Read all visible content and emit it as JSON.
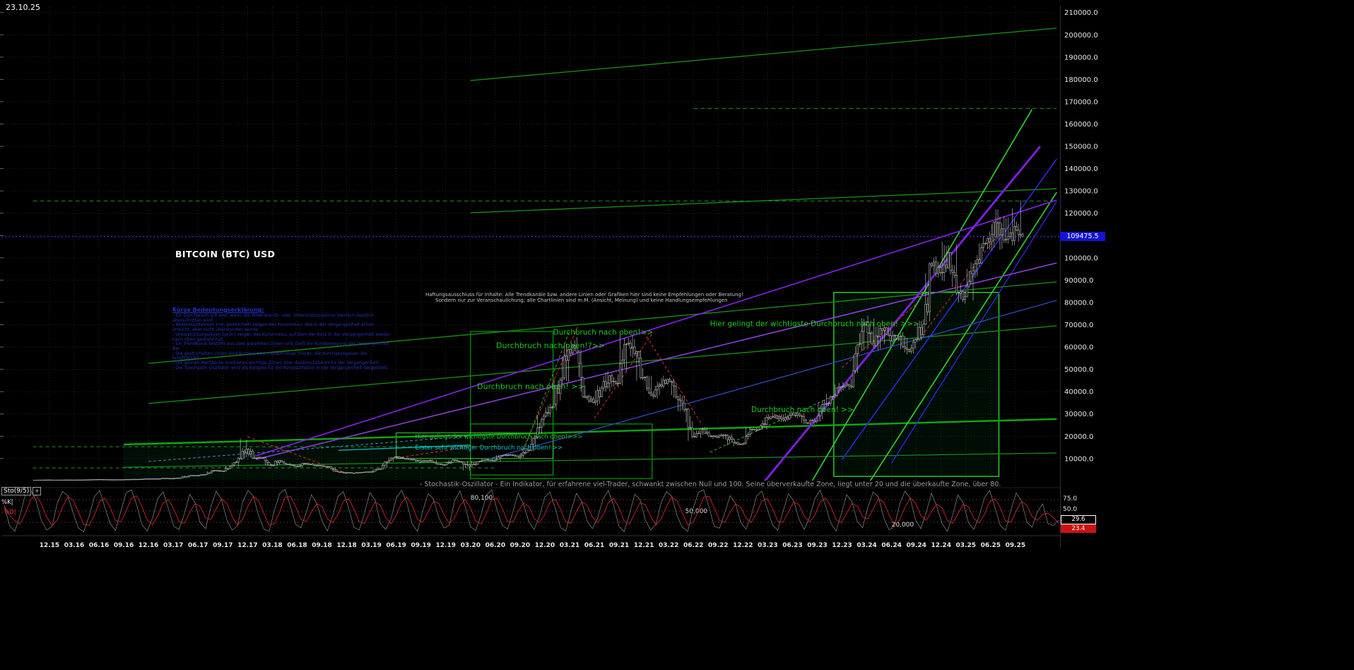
{
  "meta": {
    "date_label": "23.10.25",
    "current_price_label": "109475.5",
    "settings_icon_glyph": "+",
    "colors": {
      "background": "#000000",
      "price_badge": "#1313d6",
      "trend_green": "#168a16",
      "bright_green": "#2fd42f",
      "violet": "#7a1fd8",
      "blue": "#2929d6",
      "red_dashed": "#d03030",
      "stoch_d": "#d42222",
      "stoch_k": "#8a8a8a"
    }
  },
  "chart_data": {
    "type": "candlestick",
    "title": "BITCOIN (BTC) USD",
    "x_labels": [
      "12.15",
      "03.16",
      "06.16",
      "09.16",
      "12.16",
      "03.17",
      "06.17",
      "09.17",
      "12.17",
      "03.18",
      "06.18",
      "09.18",
      "12.18",
      "03.19",
      "06.19",
      "09.19",
      "12.19",
      "03.20",
      "06.20",
      "09.20",
      "12.20",
      "03.21",
      "06.21",
      "09.21",
      "12.21",
      "03.22",
      "06.22",
      "09.22",
      "12.22",
      "03.23",
      "06.23",
      "09.23",
      "12.23",
      "03.24",
      "06.24",
      "09.24",
      "12.24",
      "03.25",
      "06.25",
      "09.25"
    ],
    "y_axis": {
      "min": 0,
      "max": 215000,
      "ticks": [
        10000,
        20000,
        30000,
        40000,
        50000,
        60000,
        70000,
        80000,
        90000,
        100000,
        110000,
        120000,
        130000,
        140000,
        150000,
        160000,
        170000,
        180000,
        190000,
        200000,
        210000
      ]
    },
    "current_price": 109475.5,
    "price_series": {
      "start": "2015-10",
      "interval": "monthly",
      "closes": [
        314,
        377,
        430,
        368,
        437,
        416,
        448,
        531,
        673,
        624,
        575,
        610,
        700,
        745,
        963,
        970,
        1180,
        1080,
        1350,
        2300,
        2480,
        2875,
        4703,
        4338,
        6468,
        10233,
        14156,
        10285,
        10397,
        6973,
        9240,
        7494,
        6404,
        7780,
        7037,
        6625,
        6371,
        4017,
        3742,
        3457,
        3854,
        4105,
        5350,
        8574,
        10817,
        10085,
        9630,
        8308,
        9199,
        7569,
        7193,
        9350,
        8599,
        6438,
        8658,
        9461,
        9137,
        11323,
        11680,
        10784,
        13781,
        19695,
        28994,
        33114,
        45137,
        58918,
        57750,
        37332,
        35040,
        41626,
        47166,
        43790,
        61318,
        57005,
        46306,
        38483,
        43193,
        45538,
        37714,
        31792,
        19985,
        23336,
        20049,
        19431,
        20495,
        17168,
        16547,
        23139,
        23147,
        28478,
        29268,
        27219,
        30477,
        29230,
        25931,
        26967,
        34667,
        37718,
        42265,
        42580,
        61198,
        71333,
        60636,
        67491,
        62678,
        64619,
        58969,
        63329,
        70215,
        96449,
        93429,
        102405,
        84349,
        82548,
        94207,
        104598,
        107135,
        115758,
        108236,
        114056,
        109475.5
      ],
      "high_overrides": {
        "26": 19800,
        "65": 61800,
        "66": 64800,
        "72": 67000,
        "73": 69000,
        "101": 73700,
        "111": 109356,
        "117": 123218,
        "119": 124500,
        "120": 126199
      },
      "low_overrides": {
        "29": 6425,
        "38": 3122,
        "53": 3850,
        "80": 17593,
        "85": 15476,
        "114": 74420
      }
    },
    "trend_lines": [
      {
        "m1": 53,
        "p1": 179500,
        "m2": 124,
        "p2": 203000,
        "c": "#168a16",
        "w": 1.4
      },
      {
        "m1": 53,
        "p1": 120200,
        "m2": 124,
        "p2": 131000,
        "c": "#168a16",
        "w": 1.4
      },
      {
        "m1": 14,
        "p1": 52700,
        "m2": 124,
        "p2": 89200,
        "c": "#168a16",
        "w": 1.4
      },
      {
        "m1": 14,
        "p1": 34700,
        "m2": 124,
        "p2": 69500,
        "c": "#168a16",
        "w": 1.4
      },
      {
        "m1": 11,
        "p1": 16300,
        "m2": 124,
        "p2": 27700,
        "c": "#0fa80f",
        "w": 2.4
      },
      {
        "m1": 11,
        "p1": 6100,
        "m2": 124,
        "p2": 12500,
        "c": "#168a16",
        "w": 1.3
      },
      {
        "m1": 94,
        "p1": -2400,
        "m2": 121,
        "p2": 166500,
        "c": "#2fd42f",
        "w": 1.6
      },
      {
        "m1": 101,
        "p1": -2400,
        "m2": 124,
        "p2": 129400,
        "c": "#2fd42f",
        "w": 1.6
      },
      {
        "m1": 98,
        "p1": 9600,
        "m2": 124,
        "p2": 144300,
        "c": "#2929d6",
        "w": 1.6
      },
      {
        "m1": 104,
        "p1": 8000,
        "m2": 124,
        "p2": 125300,
        "c": "#2929d6",
        "w": 1.4
      },
      {
        "m1": 55,
        "p1": 9600,
        "m2": 124,
        "p2": 80900,
        "c": "#2f4fd0",
        "w": 1.2
      },
      {
        "m1": 88,
        "p1": -3000,
        "m2": 122,
        "p2": 150000,
        "c": "#7a1fd8",
        "w": 3
      },
      {
        "m1": 27,
        "p1": 11200,
        "m2": 124,
        "p2": 125900,
        "c": "#7a1fd8",
        "w": 1.8
      },
      {
        "m1": 27,
        "p1": 9600,
        "m2": 124,
        "p2": 97700,
        "c": "#8a3fd8",
        "w": 1.6
      },
      {
        "m1": 14,
        "p1": 8700,
        "m2": 53,
        "p2": 20100,
        "c": "#4f7fc9",
        "w": 1,
        "d": "4,3"
      },
      {
        "m1": 37,
        "p1": 13700,
        "m2": 53,
        "p2": 16000,
        "c": "#00c8c8",
        "w": 1.2
      },
      {
        "m1": 59,
        "p1": 11200,
        "m2": 66,
        "p2": 69200,
        "c": "#d03030",
        "w": 1,
        "d": "4,3"
      },
      {
        "m1": 68,
        "p1": 28000,
        "m2": 75,
        "p2": 66000,
        "c": "#d03030",
        "w": 1,
        "d": "4,3"
      },
      {
        "m1": 74,
        "p1": 66600,
        "m2": 81,
        "p2": 25400,
        "c": "#d03030",
        "w": 1,
        "d": "4,3"
      },
      {
        "m1": 82,
        "p1": 12800,
        "m2": 97,
        "p2": 38100,
        "c": "#2fae2f",
        "w": 1,
        "d": "4,3"
      },
      {
        "m1": 44,
        "p1": 10250,
        "m2": 53,
        "p2": 15300,
        "c": "#d03030",
        "w": 1,
        "d": "4,3"
      },
      {
        "m1": 98,
        "p1": 50800,
        "m2": 107,
        "p2": 79300,
        "c": "#d03030",
        "w": 1,
        "d": "4,3"
      },
      {
        "m1": 108,
        "p1": 66700,
        "m2": 117,
        "p2": 111000,
        "c": "#d03030",
        "w": 1,
        "d": "4,3"
      },
      {
        "m1": 59,
        "p1": 9600,
        "m2": 65,
        "p2": 67300,
        "c": "#2fae2f",
        "w": 1,
        "d": "4,3"
      },
      {
        "m1": 26,
        "p1": 19800,
        "m2": 38,
        "p2": 3400,
        "c": "#d03030",
        "w": 1,
        "d": "4,3"
      }
    ],
    "h_lines": [
      {
        "p": 125500,
        "m1": 0,
        "m2": 124,
        "c": "#1f8f1f",
        "w": 1,
        "d": "6,4"
      },
      {
        "p": 167000,
        "m1": 80,
        "m2": 124,
        "c": "#1f8f1f",
        "w": 1,
        "d": "6,4"
      },
      {
        "p": 15300,
        "m1": 0,
        "m2": 56,
        "c": "#2a8f2a",
        "w": 1,
        "d": "5,4"
      },
      {
        "p": 5800,
        "m1": 0,
        "m2": 56,
        "c": "#2a8f2a",
        "w": 1,
        "d": "5,4"
      }
    ],
    "boxes": [
      {
        "m1": 11,
        "m2": 53,
        "p1": 500,
        "p2": 18000,
        "f": "rgba(0,200,70,0.07)"
      },
      {
        "m1": 53,
        "m2": 63,
        "p1": 2600,
        "p2": 67000,
        "s": "#00a000",
        "w": 1.2
      },
      {
        "m1": 53,
        "m2": 75,
        "p1": 1000,
        "p2": 25500,
        "s": "#00a000",
        "w": 1.2
      },
      {
        "m1": 44,
        "m2": 63,
        "p1": 10000,
        "p2": 21500,
        "s": "#3ad23a",
        "w": 1
      },
      {
        "m1": 97,
        "m2": 117,
        "p1": 2000,
        "p2": 84500,
        "s": "#2ee22e",
        "w": 1.3,
        "f": "rgba(0,255,90,0.05)"
      }
    ],
    "annotations": [
      {
        "m": 56.1,
        "p": 59500,
        "t": "Durchbruch nach oben!?>>",
        "c": "#1ecb1e",
        "s": 11
      },
      {
        "m": 53.8,
        "p": 41200,
        "t": "Durchbruch nach oben! >>",
        "c": "#1ecb1e",
        "s": 11
      },
      {
        "m": 63,
        "p": 65500,
        "t": "Durchbruch nach oben!>>",
        "c": "#1ecb1e",
        "s": 10.5
      },
      {
        "m": 82,
        "p": 69300,
        "t": "Hier gelingt der wichtigste Durchbruch nach oben! >>>",
        "c": "#1ecb1e",
        "s": 10.5
      },
      {
        "m": 87,
        "p": 30900,
        "t": "Durchbruch nach oben! >>",
        "c": "#1ecb1e",
        "s": 10.5
      },
      {
        "m": 46.3,
        "p": 18900,
        "t": "Hier gelingt der wichtigste Durchbruch nach oben!>>>",
        "c": "#1ecb1e",
        "s": 8.5
      },
      {
        "m": 46.3,
        "p": 14100,
        "t": "Erster sehr wichtiger Durchbruch nach oben! >>",
        "c": "#00c8c8",
        "s": 8.5
      }
    ],
    "oscillator": {
      "name": "Sto(9/5)",
      "k_label": "%K|",
      "d_label": "-%D|",
      "value_k": "29.6",
      "value_d": "23.4",
      "level_labels": [
        "75.0",
        "50.0"
      ],
      "levels": [
        75,
        50,
        25
      ],
      "zone_labels": [
        {
          "text": "80,100",
          "m": 53,
          "level": 80
        },
        {
          "text": "50,000",
          "m": 79,
          "level": 50
        },
        {
          "text": "20,000",
          "m": 104,
          "level": 20
        }
      ],
      "k_values": [
        62,
        18,
        5,
        41,
        88,
        96,
        73,
        29,
        8,
        15,
        67,
        93,
        84,
        46,
        12,
        4,
        38,
        81,
        95,
        58,
        22,
        7,
        49,
        90,
        97,
        64,
        19,
        6,
        35,
        78,
        92,
        55,
        16,
        9,
        44,
        87,
        69,
        24,
        11,
        59,
        94,
        76,
        31,
        8,
        17,
        70,
        95,
        83,
        40,
        10,
        5,
        52,
        89,
        98,
        61,
        20,
        13,
        47,
        86,
        66,
        27,
        6,
        39,
        82,
        93,
        57,
        14,
        8,
        45,
        91,
        74,
        23,
        9,
        33,
        79,
        96,
        68,
        21,
        5,
        50,
        88,
        77,
        36,
        12,
        19,
        72,
        94,
        60,
        15,
        7,
        42,
        85,
        97,
        53,
        18,
        10,
        48,
        90,
        65,
        26,
        9,
        37,
        80,
        92,
        56,
        13,
        6,
        51,
        89,
        71,
        28,
        11,
        34,
        76,
        95,
        63,
        17,
        4,
        43,
        87,
        75,
        30,
        8,
        20,
        69,
        93,
        82,
        39,
        14,
        5,
        54,
        91,
        97,
        59,
        16,
        12,
        46,
        84,
        67,
        25,
        10,
        40,
        83,
        94,
        55,
        19,
        7,
        49,
        88,
        73,
        32,
        9,
        36,
        77,
        96,
        62,
        23,
        6,
        44,
        86,
        70,
        27,
        13,
        58,
        92,
        81,
        35,
        8,
        16,
        65,
        94,
        78,
        30,
        11,
        47,
        89,
        60,
        22,
        5,
        41,
        85,
        68,
        24,
        9,
        38,
        79,
        95,
        57,
        18,
        7,
        52,
        90,
        72,
        26,
        14,
        48,
        66,
        22,
        18,
        29.6
      ]
    }
  },
  "legend": {
    "title": "Kürze Bedeutungserklärung:",
    "lines": [
      "- Ein Durchbruch gilt erst, wenn die Widerstands- oder Unterstützungslinie ziemlich deutlich überschritten wird.",
      "- Widerstandslinien (rot, gestrichelt) zeigen das Kursniveau, das in der Vergangenheit schon erreicht, aber nicht überwunden wurde.",
      "- Unterstützungslinien (grün) zeigen das Kursniveau, auf dem der Kurs in der Vergangenheit wieder nach oben gedreht hat.",
      "- Ein Trendkanal besteht aus zwei parallelen Linien und stellt die Kursbewegung der Vergangenheit dar.",
      "- Die gestrichelten Linien sind kürzere bzw. mittelfristige Trends, die durchgezogenen die langfristigen.",
      "- Die grünen Rechtecke markieren wichtige Zonen bzw. Ausbruchsbereiche der Vergangenheit.",
      "- Der Stochastik-Oszillator wird als Beispiel für die Kursoszillation in der Vergangenheit dargestellt."
    ]
  },
  "disclaimer": {
    "line1": "Haftungsausschluss für Inhalte: Alle Trendkanäle bzw. andere Linien oder Grafiken hier sind keine Empfehlungen oder Beratung!",
    "line2": "Sondern nur zur Veranschaulichung; alle Chartlinien sind m.M. (Ansicht, Meinung) und keine Handlungsempfehlungen"
  },
  "captions": {
    "oscillator": "- Stochastik-Oszillator - Ein Indikator, für erfahrene viel-Trader, schwankt zwischen Null und 100. Seine überverkaufte Zone, liegt unter 20 und die überkaufte Zone, über 80."
  }
}
